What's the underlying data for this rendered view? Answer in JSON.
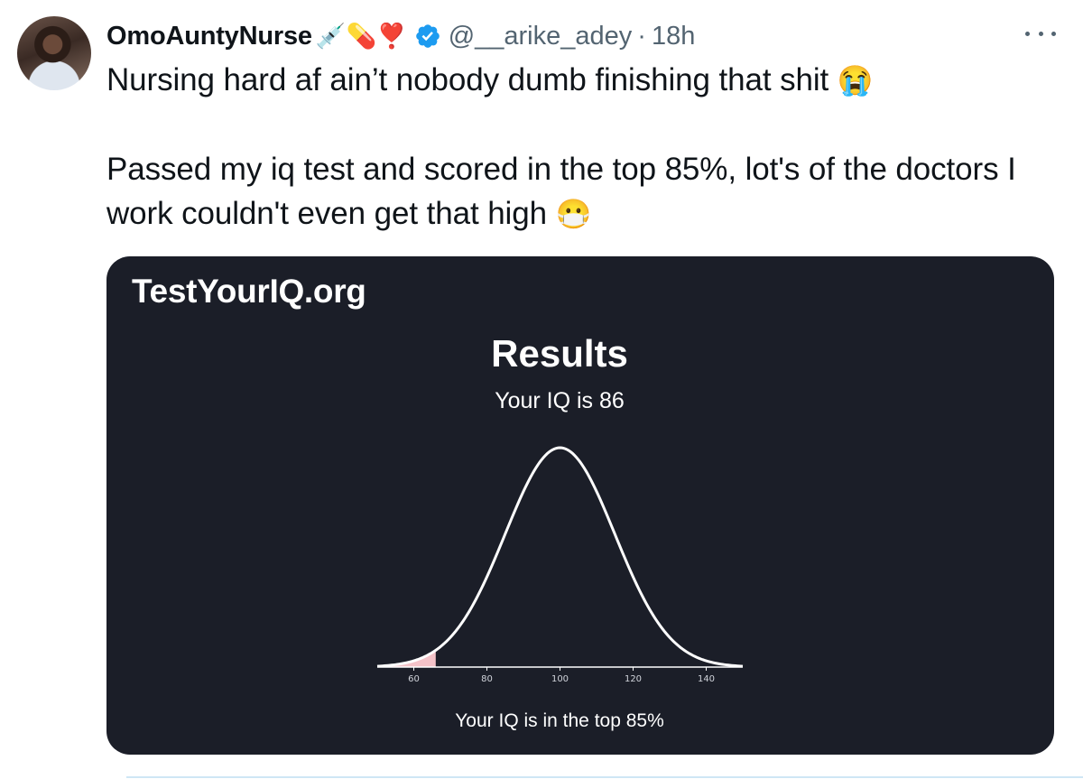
{
  "tweet": {
    "display_name": "OmoAuntyNurse",
    "name_emojis": "💉💊❣️",
    "handle": "@__arike_adey",
    "separator": "·",
    "time": "18h",
    "line1": "Nursing hard af ain’t nobody dumb finishing that shit",
    "line1_emoji": "😭",
    "line2": "Passed my iq test and scored in the top 85%, lot's of the doctors I work couldn't even get that high",
    "line2_emoji": "😷"
  },
  "media": {
    "site": "TestYourIQ.org",
    "title": "Results",
    "subtitle": "Your IQ is 86",
    "footer": "Your IQ is in the top 85%"
  },
  "chart_data": {
    "type": "area",
    "distribution": "normal",
    "mean": 100,
    "sd": 15,
    "xlim": [
      50,
      150
    ],
    "x_ticks": [
      60,
      80,
      100,
      120,
      140
    ],
    "highlight_below": 66,
    "curve_color": "#ffffff",
    "highlight_color": "#f4c2c8",
    "background": "#1b1e28",
    "title": "",
    "xlabel": "",
    "ylabel": ""
  },
  "colors": {
    "verified_badge": "#1d9bf0",
    "secondary_text": "#536471"
  }
}
